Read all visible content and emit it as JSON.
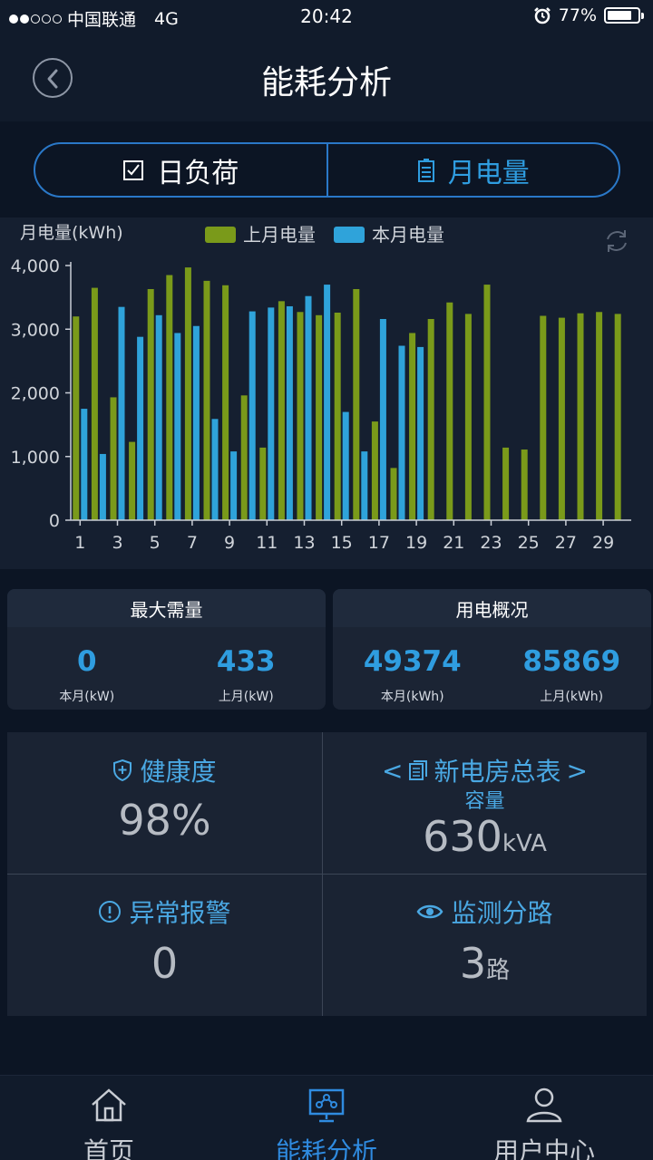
{
  "status_bar": {
    "carrier": "中国联通",
    "network": "4G",
    "time": "20:42",
    "battery": "77%"
  },
  "nav": {
    "title": "能耗分析"
  },
  "segment": {
    "left_label": "日负荷",
    "right_label": "月电量"
  },
  "chart_data": {
    "type": "bar",
    "ylabel": "月电量(kWh)",
    "ylim": [
      0,
      4000
    ],
    "yticks": [
      "0",
      "1,000",
      "2,000",
      "3,000",
      "4,000"
    ],
    "xticks": [
      "1",
      "3",
      "5",
      "7",
      "9",
      "11",
      "13",
      "15",
      "17",
      "19",
      "21",
      "23",
      "25",
      "27",
      "29"
    ],
    "x": [
      1,
      2,
      3,
      4,
      5,
      6,
      7,
      8,
      9,
      10,
      11,
      12,
      13,
      14,
      15,
      16,
      17,
      18,
      19,
      20,
      21,
      22,
      23,
      24,
      25,
      26,
      27,
      28,
      29,
      30
    ],
    "legend_position": "top",
    "series": [
      {
        "name": "上月电量",
        "color": "#7a9a1a",
        "values": [
          3200,
          3650,
          1930,
          1230,
          3630,
          3850,
          3970,
          3760,
          3690,
          1960,
          1140,
          3440,
          3270,
          3220,
          3260,
          3630,
          1550,
          820,
          2940,
          3160,
          3420,
          3240,
          3700,
          1140,
          1110,
          3210,
          3180,
          3250,
          3270,
          3240
        ]
      },
      {
        "name": "本月电量",
        "color": "#2fa3da",
        "values": [
          1750,
          1040,
          3350,
          2880,
          3220,
          2940,
          3050,
          1590,
          1080,
          3280,
          3340,
          3360,
          3520,
          3700,
          1700,
          1080,
          3160,
          2740,
          2720,
          null,
          null,
          null,
          null,
          null,
          null,
          null,
          null,
          null,
          null,
          null
        ]
      }
    ]
  },
  "max_demand": {
    "title": "最大需量",
    "current_value": "0",
    "current_label": "本月(kW)",
    "last_value": "433",
    "last_label": "上月(kW)"
  },
  "usage": {
    "title": "用电概况",
    "current_value": "49374",
    "current_label": "本月(kWh)",
    "last_value": "85869",
    "last_label": "上月(kWh)"
  },
  "grid": {
    "health": {
      "title": "健康度",
      "value": "98%"
    },
    "meter": {
      "title": "新电房总表",
      "subtitle": "容量",
      "value": "630",
      "unit": "kVA"
    },
    "alarm": {
      "title": "异常报警",
      "value": "0"
    },
    "monitor": {
      "title": "监测分路",
      "value": "3",
      "unit": "路"
    }
  },
  "tabs": [
    {
      "label": "首页",
      "icon": "home-icon",
      "active": false
    },
    {
      "label": "能耗分析",
      "icon": "analysis-icon",
      "active": true
    },
    {
      "label": "用户中心",
      "icon": "user-icon",
      "active": false
    }
  ],
  "colors": {
    "accent": "#2f9de0",
    "active_tab": "#2f8be0",
    "last_month": "#7a9a1a",
    "this_month": "#2fa3da"
  }
}
